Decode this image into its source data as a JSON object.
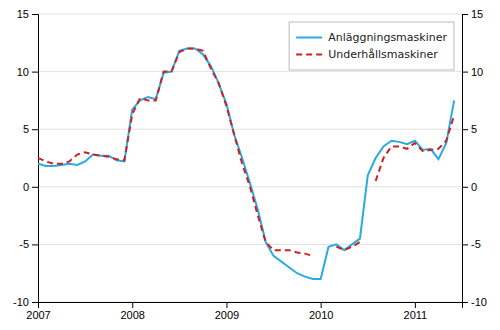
{
  "chart_data": {
    "type": "line",
    "x": [
      2007,
      2007.0833333333333,
      2007.1666666666667,
      2007.25,
      2007.3333333333333,
      2007.4166666666667,
      2007.5,
      2007.5833333333333,
      2007.6666666666667,
      2007.75,
      2007.8333333333333,
      2007.9166666666667,
      2008,
      2008.0833333333333,
      2008.1666666666667,
      2008.25,
      2008.3333333333333,
      2008.4166666666667,
      2008.5,
      2008.5833333333333,
      2008.6666666666667,
      2008.75,
      2008.8333333333333,
      2008.9166666666667,
      2009,
      2009.0833333333333,
      2009.1666666666667,
      2009.25,
      2009.3333333333333,
      2009.4166666666667,
      2009.5,
      2009.5833333333333,
      2009.6666666666667,
      2009.75,
      2009.8333333333333,
      2009.9166666666667,
      2010,
      2010.0833333333333,
      2010.1666666666667,
      2010.25,
      2010.3333333333333,
      2010.4166666666667,
      2010.5,
      2010.5833333333333,
      2010.6666666666667,
      2010.75,
      2010.8333333333333,
      2010.9166666666667,
      2011,
      2011.0833333333333,
      2011.1666666666667,
      2011.25,
      2011.3333333333333,
      2011.4166666666667
    ],
    "xlim": [
      2007,
      2011.5
    ],
    "xticks": [
      2007,
      2008,
      2009,
      2010,
      2011
    ],
    "ylim": [
      -10,
      15
    ],
    "yticks": [
      -10,
      -5,
      0,
      5,
      10,
      15
    ],
    "y2lim": [
      -10,
      15
    ],
    "y2ticks": [
      -10,
      -5,
      0,
      5,
      10,
      15
    ],
    "grid": true,
    "legend": "upper right",
    "series": [
      {
        "name": "Anläggningsmaskiner",
        "color": "#29abe2",
        "line_style": "solid",
        "values": [
          2.0,
          1.8,
          1.8,
          1.9,
          2.0,
          1.9,
          2.2,
          2.8,
          2.7,
          2.7,
          2.3,
          2.2,
          6.7,
          7.5,
          7.8,
          7.6,
          9.9,
          10.0,
          11.8,
          12.0,
          12.0,
          11.5,
          10.5,
          9.0,
          7.2,
          4.5,
          2.5,
          0.3,
          -2.0,
          -4.8,
          -6.0,
          -6.5,
          -7.0,
          -7.5,
          -7.8,
          -8.0,
          -8.0,
          -5.2,
          -5.0,
          -5.5,
          -5.0,
          -4.5,
          1.0,
          2.5,
          3.5,
          4.0,
          3.9,
          3.7,
          4.0,
          3.2,
          3.3,
          2.4,
          3.8,
          7.5
        ]
      },
      {
        "name": "Underhållsmaskiner",
        "color": "#cc2222",
        "line_style": "dashed",
        "values": [
          2.5,
          2.2,
          2.0,
          2.0,
          2.2,
          2.8,
          3.0,
          2.8,
          2.7,
          2.6,
          2.4,
          2.3,
          6.3,
          7.7,
          7.5,
          7.5,
          10.0,
          10.0,
          11.7,
          12.0,
          12.0,
          11.8,
          10.3,
          9.0,
          7.0,
          4.5,
          2.0,
          0.0,
          -2.5,
          -4.8,
          -5.5,
          -5.5,
          -5.5,
          -5.7,
          -5.8,
          -6.0,
          null,
          null,
          -5.2,
          -5.5,
          -5.2,
          -4.8,
          null,
          0.5,
          2.5,
          3.5,
          3.5,
          3.3,
          3.8,
          3.1,
          3.2,
          3.3,
          4.0,
          6.2
        ]
      }
    ]
  }
}
